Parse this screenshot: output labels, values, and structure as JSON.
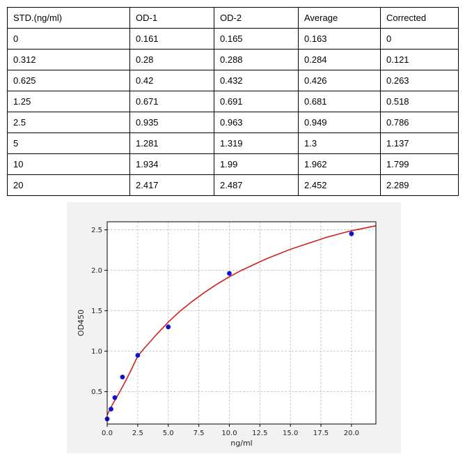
{
  "table": {
    "headers": [
      "STD.(ng/ml)",
      "OD-1",
      "OD-2",
      "Average",
      "Corrected"
    ],
    "rows": [
      [
        "0",
        "0.161",
        "0.165",
        "0.163",
        "0"
      ],
      [
        "0.312",
        "0.28",
        "0.288",
        "0.284",
        "0.121"
      ],
      [
        "0.625",
        "0.42",
        "0.432",
        "0.426",
        "0.263"
      ],
      [
        "1.25",
        "0.671",
        "0.691",
        "0.681",
        "0.518"
      ],
      [
        "2.5",
        "0.935",
        "0.963",
        "0.949",
        "0.786"
      ],
      [
        "5",
        "1.281",
        "1.319",
        "1.3",
        "1.137"
      ],
      [
        "10",
        "1.934",
        "1.99",
        "1.962",
        "1.799"
      ],
      [
        "20",
        "2.417",
        "2.487",
        "2.452",
        "2.289"
      ]
    ]
  },
  "chart_data": {
    "type": "scatter",
    "xlabel": "ng/ml",
    "ylabel": "OD450",
    "xlim": [
      0,
      22
    ],
    "ylim": [
      0.1,
      2.6
    ],
    "xticks": [
      "0.0",
      "2.5",
      "5.0",
      "7.5",
      "10.0",
      "12.5",
      "15.0",
      "17.5",
      "20.0"
    ],
    "yticks": [
      "0.5",
      "1.0",
      "1.5",
      "2.0",
      "2.5"
    ],
    "grid": true,
    "points": {
      "x": [
        0,
        0.312,
        0.625,
        1.25,
        2.5,
        5,
        10,
        20
      ],
      "y": [
        0.163,
        0.284,
        0.426,
        0.681,
        0.949,
        1.3,
        1.962,
        2.452
      ]
    },
    "fit_curve": {
      "x": [
        0,
        0.25,
        0.5,
        1,
        1.5,
        2,
        2.5,
        3,
        4,
        5,
        6,
        7,
        8,
        9,
        10,
        11,
        12,
        13,
        14,
        15,
        16,
        17,
        18,
        19,
        20,
        21,
        22
      ],
      "y": [
        0.21,
        0.29,
        0.36,
        0.49,
        0.63,
        0.78,
        0.94,
        1.03,
        1.2,
        1.36,
        1.5,
        1.62,
        1.73,
        1.83,
        1.92,
        2.0,
        2.07,
        2.14,
        2.2,
        2.26,
        2.31,
        2.36,
        2.41,
        2.45,
        2.49,
        2.52,
        2.55
      ]
    },
    "colors": {
      "points": "#1010d0",
      "curve": "#d02020",
      "grid": "#bbbbbb",
      "background": "#f2f2f2"
    }
  }
}
